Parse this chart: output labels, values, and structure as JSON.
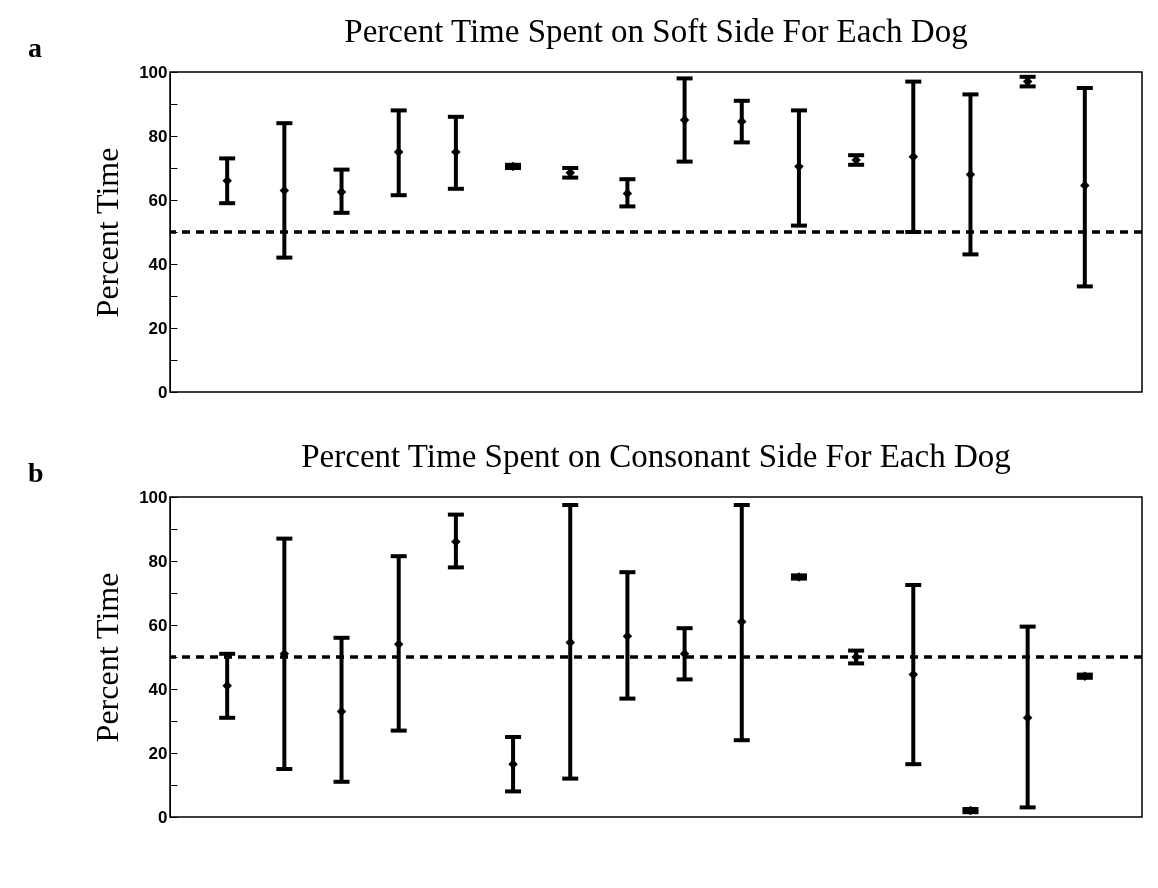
{
  "chart_data": [
    {
      "type": "scatter",
      "title": "Percent Time Spent on Soft Side For Each Dog",
      "ylabel": "Percent Time",
      "annotations": [
        "a"
      ],
      "categories": [
        null,
        null,
        null,
        null,
        null,
        null,
        null,
        null,
        null,
        null,
        null,
        null,
        null,
        null,
        null,
        null
      ],
      "series": [
        {
          "color": "#000000",
          "values": [
            66,
            63,
            62.5,
            75,
            75,
            70.5,
            68.5,
            62,
            85,
            84.5,
            70.5,
            72.5,
            73.5,
            68,
            97,
            64.5
          ],
          "errors": [
            [
              59,
              73
            ],
            [
              42,
              84
            ],
            [
              56,
              69.5
            ],
            [
              61.5,
              88
            ],
            [
              63.5,
              86
            ],
            [
              70,
              71
            ],
            [
              67,
              70
            ],
            [
              58,
              66.5
            ],
            [
              72,
              98
            ],
            [
              78,
              91
            ],
            [
              52,
              88
            ],
            [
              71,
              74
            ],
            [
              50,
              97
            ],
            [
              43,
              93
            ],
            [
              95.5,
              98.5
            ],
            [
              33,
              95
            ]
          ]
        }
      ],
      "ylim": [
        0,
        100
      ],
      "yticks": [
        0,
        {
          "value": 10,
          "label": null
        },
        20,
        {
          "value": 30,
          "label": null
        },
        40,
        {
          "value": 50,
          "label": null
        },
        60,
        {
          "value": 70,
          "label": null
        },
        80,
        {
          "value": 90,
          "label": null
        },
        100
      ],
      "ref_lines": [
        {
          "axis": "y",
          "value": 50,
          "line_style": "dashed",
          "color": "#000000"
        }
      ],
      "marker": "diamond",
      "grid": false
    },
    {
      "type": "scatter",
      "title": "Percent Time Spent on Consonant Side For Each Dog",
      "ylabel": "Percent Time",
      "annotations": [
        "b"
      ],
      "categories": [
        null,
        null,
        null,
        null,
        null,
        null,
        null,
        null,
        null,
        null,
        null,
        null,
        null,
        null,
        null,
        null
      ],
      "series": [
        {
          "color": "#000000",
          "values": [
            41,
            51,
            33,
            54,
            86,
            16.5,
            54.5,
            56.5,
            51,
            61,
            75,
            50,
            44.5,
            2,
            31,
            44
          ],
          "errors": [
            [
              31,
              51
            ],
            [
              15,
              87
            ],
            [
              11,
              56
            ],
            [
              27,
              81.5
            ],
            [
              78,
              94.5
            ],
            [
              8,
              25
            ],
            [
              12,
              97.5
            ],
            [
              37,
              76.5
            ],
            [
              43,
              59
            ],
            [
              24,
              97.5
            ],
            [
              74.5,
              75.5
            ],
            [
              48,
              52
            ],
            [
              16.5,
              72.5
            ],
            [
              1.5,
              2.5
            ],
            [
              3,
              59.5
            ],
            [
              43.5,
              44.5
            ]
          ]
        }
      ],
      "ylim": [
        0,
        100
      ],
      "yticks": [
        0,
        {
          "value": 10,
          "label": null
        },
        20,
        {
          "value": 30,
          "label": null
        },
        40,
        {
          "value": 50,
          "label": null
        },
        60,
        {
          "value": 70,
          "label": null
        },
        80,
        {
          "value": 90,
          "label": null
        },
        100
      ],
      "ref_lines": [
        {
          "axis": "y",
          "value": 50,
          "line_style": "dashed",
          "color": "#000000"
        }
      ],
      "marker": "diamond",
      "grid": false
    }
  ]
}
